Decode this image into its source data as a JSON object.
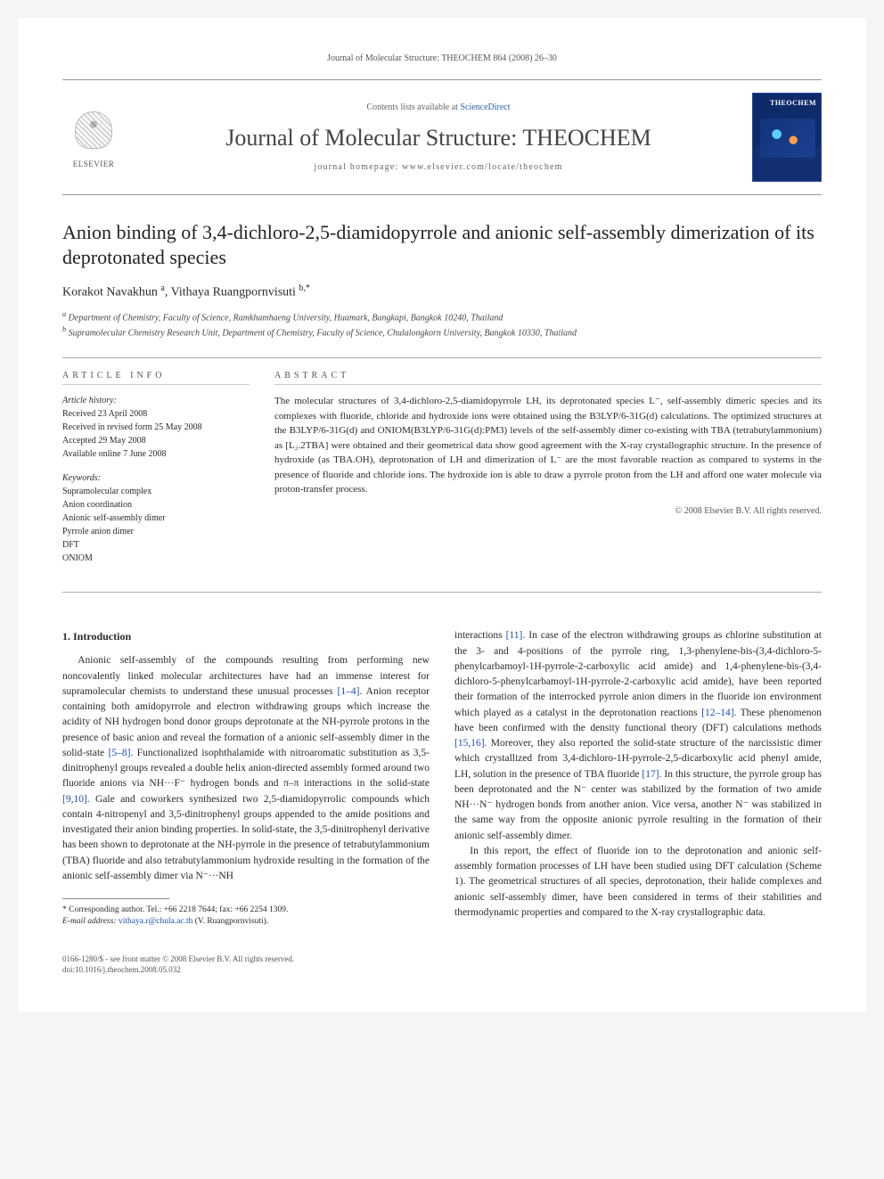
{
  "citation": "Journal of Molecular Structure: THEOCHEM 864 (2008) 26–30",
  "header": {
    "contents_prefix": "Contents lists available at ",
    "contents_link": "ScienceDirect",
    "journal": "Journal of Molecular Structure: THEOCHEM",
    "homepage_prefix": "journal homepage: ",
    "homepage": "www.elsevier.com/locate/theochem",
    "elsevier_label": "ELSEVIER",
    "cover_badge": "THEOCHEM"
  },
  "title": "Anion binding of 3,4-dichloro-2,5-diamidopyrrole and anionic self-assembly dimerization of its deprotonated species",
  "authors_html": "Korakot Navakhun <sup>a</sup>, Vithaya Ruangpornvisuti <sup>b,*</sup>",
  "affiliations": {
    "a": "Department of Chemistry, Faculty of Science, Ramkhamhaeng University, Huamark, Bangkapi, Bangkok 10240, Thailand",
    "b": "Supramolecular Chemistry Research Unit, Department of Chemistry, Faculty of Science, Chulalongkorn University, Bangkok 10330, Thailand"
  },
  "article_info": {
    "head": "ARTICLE INFO",
    "history_label": "Article history:",
    "history": [
      "Received 23 April 2008",
      "Received in revised form 25 May 2008",
      "Accepted 29 May 2008",
      "Available online 7 June 2008"
    ],
    "keywords_label": "Keywords:",
    "keywords": [
      "Supramolecular complex",
      "Anion coordination",
      "Anionic self-assembly dimer",
      "Pyrrole anion dimer",
      "DFT",
      "ONIOM"
    ]
  },
  "abstract": {
    "head": "ABSTRACT",
    "text": "The molecular structures of 3,4-dichloro-2,5-diamidopyrrole LH, its deprotonated species L⁻, self-assembly dimeric species and its complexes with fluoride, chloride and hydroxide ions were obtained using the B3LYP/6-31G(d) calculations. The optimized structures at the B3LYP/6-31G(d) and ONIOM(B3LYP/6-31G(d):PM3) levels of the self-assembly dimer co-existing with TBA (tetrabutylammonium) as [L₂.2TBA] were obtained and their geometrical data show good agreement with the X-ray crystallographic structure. In the presence of hydroxide (as TBA.OH), deprotonation of LH and dimerization of L⁻ are the most favorable reaction as compared to systems in the presence of fluoride and chloride ions. The hydroxide ion is able to draw a pyrrole proton from the LH and afford one water molecule via proton-transfer process.",
    "copyright": "© 2008 Elsevier B.V. All rights reserved."
  },
  "section1_head": "1. Introduction",
  "paragraphs": [
    "Anionic self-assembly of the compounds resulting from performing new noncovalently linked molecular architectures have had an immense interest for supramolecular chemists to understand these unusual processes [1–4]. Anion receptor containing both amidopyrrole and electron withdrawing groups which increase the acidity of NH hydrogen bond donor groups deprotonate at the NH-pyrrole protons in the presence of basic anion and reveal the formation of a anionic self-assembly dimer in the solid-state [5–8]. Functionalized isophthalamide with nitroaromatic substitution as 3,5-dinitrophenyl groups revealed a double helix anion-directed assembly formed around two fluoride anions via NH···F⁻ hydrogen bonds and π–π interactions in the solid-state [9,10]. Gale and coworkers synthesized two 2,5-diamidopyrrolic compounds which contain 4-nitropenyl and 3,5-dinitrophenyl groups appended to the amide positions and investigated their anion binding properties. In solid-state, the 3,5-dinitrophenyl derivative has been shown to deprotonate at the NH-pyrrole in the presence of tetrabutylammonium (TBA) fluoride and also tetrabutylammonium hydroxide resulting in the formation of the anionic self-assembly dimer via N⁻···NH",
    "interactions [11]. In case of the electron withdrawing groups as chlorine substitution at the 3- and 4-positions of the pyrrole ring, 1,3-phenylene-bis-(3,4-dichloro-5-phenylcarbamoyl-1H-pyrrole-2-carboxylic acid amide) and 1,4-phenylene-bis-(3,4-dichloro-5-phenylcarbamoyl-1H-pyrrole-2-carboxylic acid amide), have been reported their formation of the interrocked pyrrole anion dimers in the fluoride ion environment which played as a catalyst in the deprotonation reactions [12–14]. These phenomenon have been confirmed with the density functional theory (DFT) calculations methods [15,16]. Moreover, they also reported the solid-state structure of the narcissistic dimer which crystallized from 3,4-dichloro-1H-pyrrole-2,5-dicarboxylic acid phenyl amide, LH, solution in the presence of TBA fluoride [17]. In this structure, the pyrrole group has been deprotonated and the N⁻ center was stabilized by the formation of two amide NH···N⁻ hydrogen bonds from another anion. Vice versa, another N⁻ was stabilized in the same way from the opposite anionic pyrrole resulting in the formation of their anionic self-assembly dimer.",
    "In this report, the effect of fluoride ion to the deprotonation and anionic self-assembly formation processes of LH have been studied using DFT calculation (Scheme 1). The geometrical structures of all species, deprotonation, their halide complexes and anionic self-assembly dimer, have been considered in terms of their stabilities and thermodynamic properties and compared to the X-ray crystallographic data."
  ],
  "footnote": {
    "corr": "* Corresponding author. Tel.: +66 2218 7644; fax: +66 2254 1309.",
    "email_label": "E-mail address:",
    "email": "vithaya.r@chula.ac.th",
    "email_name": "(V. Ruangpornvisuti)."
  },
  "footer": {
    "line1": "0166-1280/$ - see front matter © 2008 Elsevier B.V. All rights reserved.",
    "line2": "doi:10.1016/j.theochem.2008.05.032"
  },
  "colors": {
    "link": "#1a4db3",
    "rule": "#999999",
    "cover_bg": "#0e2a6b"
  }
}
